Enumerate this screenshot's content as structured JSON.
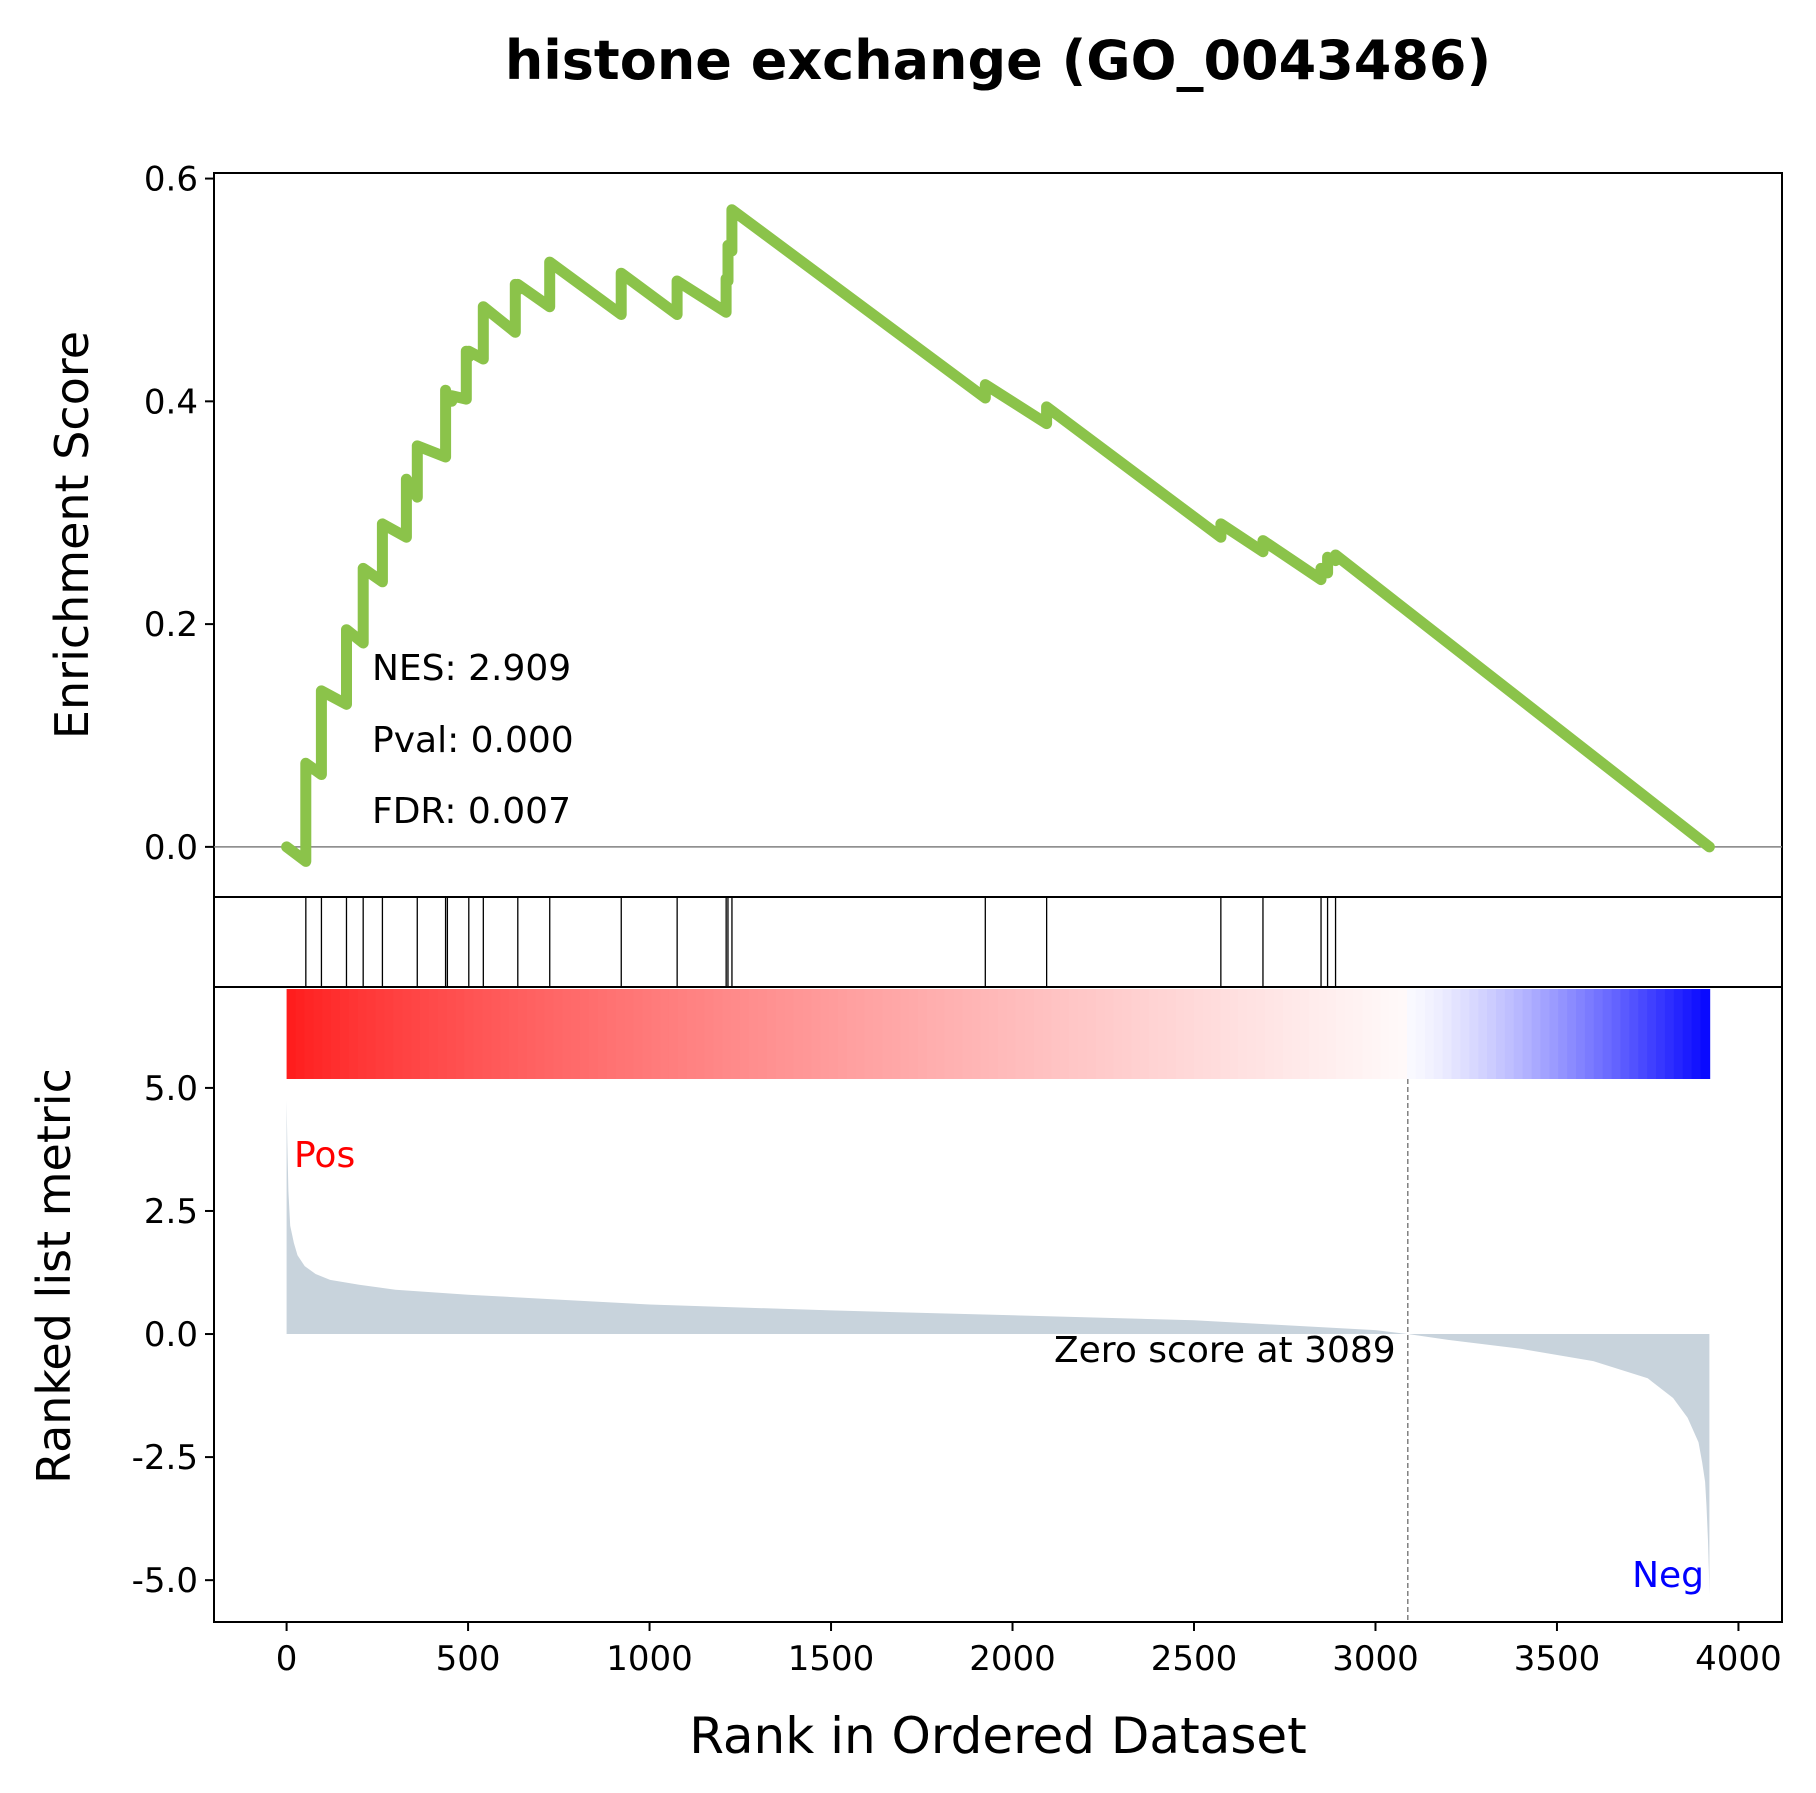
{
  "title": "histone exchange (GO_0043486)",
  "colors": {
    "es_line": "#8bc34a",
    "metric_fill": "#c8d3dc",
    "pos_label": "#ff0000",
    "neg_label": "#0000ff",
    "zero_line": "#808080"
  },
  "stats": {
    "nes": "NES: 2.909",
    "pval": "Pval: 0.000",
    "fdr": "FDR: 0.007"
  },
  "labels": {
    "pos": "Pos",
    "neg": "Neg",
    "zero_score": "Zero score at 3089"
  },
  "chart_data": [
    {
      "type": "line",
      "panel": "enrichment",
      "ylabel": "Enrichment Score",
      "xlim": [
        -200,
        4120
      ],
      "ylim": [
        -0.045,
        0.605
      ],
      "yticks": [
        0.0,
        0.2,
        0.4,
        0.6
      ],
      "ytick_labels": [
        "0.0",
        "0.2",
        "0.4",
        "0.6"
      ],
      "zero_line": true,
      "series": [
        {
          "x": [
            0,
            53,
            53,
            96,
            96,
            165,
            165,
            211,
            211,
            264,
            264,
            330,
            330,
            360,
            360,
            438,
            438,
            443,
            443,
            455,
            455,
            495,
            495,
            502,
            502,
            542,
            542,
            630,
            630,
            637,
            637,
            725,
            725,
            922,
            922,
            1076,
            1076,
            1211,
            1211,
            1216,
            1216,
            1227,
            1227,
            1925,
            1925,
            2094,
            2094,
            2574,
            2574,
            2690,
            2690,
            2850,
            2850,
            2868,
            2868,
            2890,
            2890,
            3920
          ],
          "y": [
            0.0,
            -0.013,
            0.075,
            0.065,
            0.14,
            0.128,
            0.195,
            0.183,
            0.25,
            0.238,
            0.29,
            0.278,
            0.33,
            0.314,
            0.36,
            0.35,
            0.41,
            0.4,
            0.405,
            0.4,
            0.405,
            0.402,
            0.445,
            0.44,
            0.445,
            0.438,
            0.485,
            0.462,
            0.505,
            0.5,
            0.505,
            0.485,
            0.525,
            0.478,
            0.515,
            0.478,
            0.508,
            0.48,
            0.51,
            0.508,
            0.54,
            0.535,
            0.572,
            0.403,
            0.415,
            0.38,
            0.395,
            0.278,
            0.29,
            0.265,
            0.275,
            0.24,
            0.25,
            0.246,
            0.26,
            0.257,
            0.262,
            0.0
          ]
        }
      ]
    },
    {
      "type": "hits",
      "panel": "gene-set-hits",
      "x": [
        53,
        96,
        165,
        211,
        264,
        360,
        438,
        443,
        502,
        542,
        637,
        725,
        922,
        1076,
        1211,
        1216,
        1227,
        1925,
        2094,
        2574,
        2690,
        2850,
        2868,
        2890
      ]
    },
    {
      "type": "area",
      "panel": "ranked-list",
      "xlabel": "Rank in Ordered Dataset",
      "ylabel": "Ranked list metric",
      "xlim": [
        -200,
        4120
      ],
      "ylim": [
        -5.85,
        7.05
      ],
      "xticks": [
        0,
        500,
        1000,
        1500,
        2000,
        2500,
        3000,
        3500,
        4000
      ],
      "xtick_labels": [
        "0",
        "500",
        "1000",
        "1500",
        "2000",
        "2500",
        "3000",
        "3500",
        "4000"
      ],
      "yticks": [
        5.0,
        2.5,
        0.0,
        -2.5,
        -5.0
      ],
      "ytick_labels": [
        "5.0",
        "2.5",
        "0.0",
        "-2.5",
        "-5.0"
      ],
      "zero_score_rank": 3089,
      "colorbar_range": [
        0,
        3920
      ],
      "series": [
        {
          "x": [
            0,
            2,
            5,
            10,
            20,
            30,
            50,
            80,
            120,
            200,
            300,
            500,
            800,
            1000,
            1500,
            2000,
            2500,
            3000,
            3089,
            3200,
            3400,
            3600,
            3750,
            3820,
            3860,
            3890,
            3900,
            3908,
            3912,
            3916,
            3919,
            3920
          ],
          "values": [
            4.75,
            3.9,
            2.9,
            2.2,
            1.85,
            1.6,
            1.38,
            1.22,
            1.1,
            1.0,
            0.9,
            0.8,
            0.68,
            0.6,
            0.48,
            0.38,
            0.28,
            0.08,
            0.0,
            -0.12,
            -0.3,
            -0.55,
            -0.9,
            -1.3,
            -1.7,
            -2.2,
            -2.6,
            -3.0,
            -3.5,
            -4.2,
            -4.9,
            -5.3
          ]
        }
      ]
    }
  ]
}
